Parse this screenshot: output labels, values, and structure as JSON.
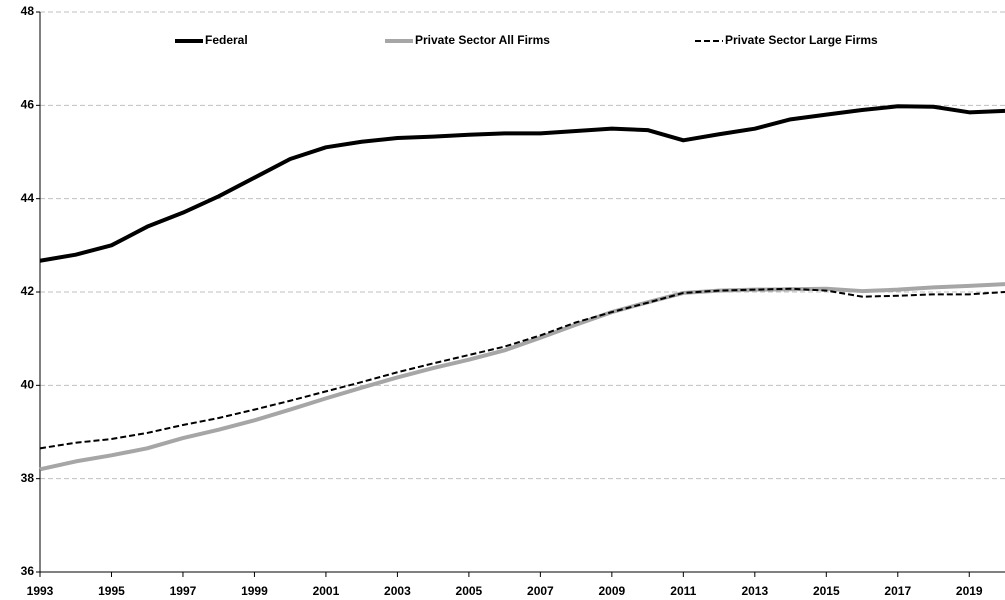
{
  "chart_data": {
    "type": "line",
    "x": [
      1993,
      1994,
      1995,
      1996,
      1997,
      1998,
      1999,
      2000,
      2001,
      2002,
      2003,
      2004,
      2005,
      2006,
      2007,
      2008,
      2009,
      2010,
      2011,
      2012,
      2013,
      2014,
      2015,
      2016,
      2017,
      2018,
      2019,
      2020
    ],
    "series": [
      {
        "name": "Federal",
        "color": "#000000",
        "dash": false,
        "values": [
          42.67,
          42.8,
          43.0,
          43.4,
          43.7,
          44.05,
          44.45,
          44.85,
          45.1,
          45.22,
          45.3,
          45.33,
          45.37,
          45.4,
          45.4,
          45.45,
          45.5,
          45.47,
          45.25,
          45.38,
          45.5,
          45.7,
          45.8,
          45.9,
          45.98,
          45.97,
          45.85,
          45.88
        ]
      },
      {
        "name": "Private Sector All Firms",
        "color": "#a6a6a6",
        "dash": false,
        "values": [
          38.2,
          38.37,
          38.5,
          38.65,
          38.87,
          39.05,
          39.25,
          39.48,
          39.72,
          39.95,
          40.17,
          40.37,
          40.55,
          40.75,
          41.02,
          41.3,
          41.57,
          41.78,
          41.98,
          42.03,
          42.05,
          42.06,
          42.07,
          42.02,
          42.05,
          42.1,
          42.13,
          42.17
        ]
      },
      {
        "name": "Private Sector Large Firms",
        "color": "#000000",
        "dash": true,
        "values": [
          38.65,
          38.77,
          38.85,
          38.98,
          39.15,
          39.3,
          39.48,
          39.67,
          39.87,
          40.07,
          40.28,
          40.47,
          40.65,
          40.83,
          41.07,
          41.35,
          41.57,
          41.77,
          41.98,
          42.03,
          42.05,
          42.07,
          42.03,
          41.9,
          41.92,
          41.95,
          41.95,
          42.0
        ]
      }
    ],
    "xlim": [
      1993,
      2020
    ],
    "xticks": [
      1993,
      1995,
      1997,
      1999,
      2001,
      2003,
      2005,
      2007,
      2009,
      2011,
      2013,
      2015,
      2017,
      2019
    ],
    "ylim": [
      36,
      48
    ],
    "yticks": [
      36,
      38,
      40,
      42,
      44,
      46,
      48
    ],
    "grid": true,
    "legend": "top"
  }
}
